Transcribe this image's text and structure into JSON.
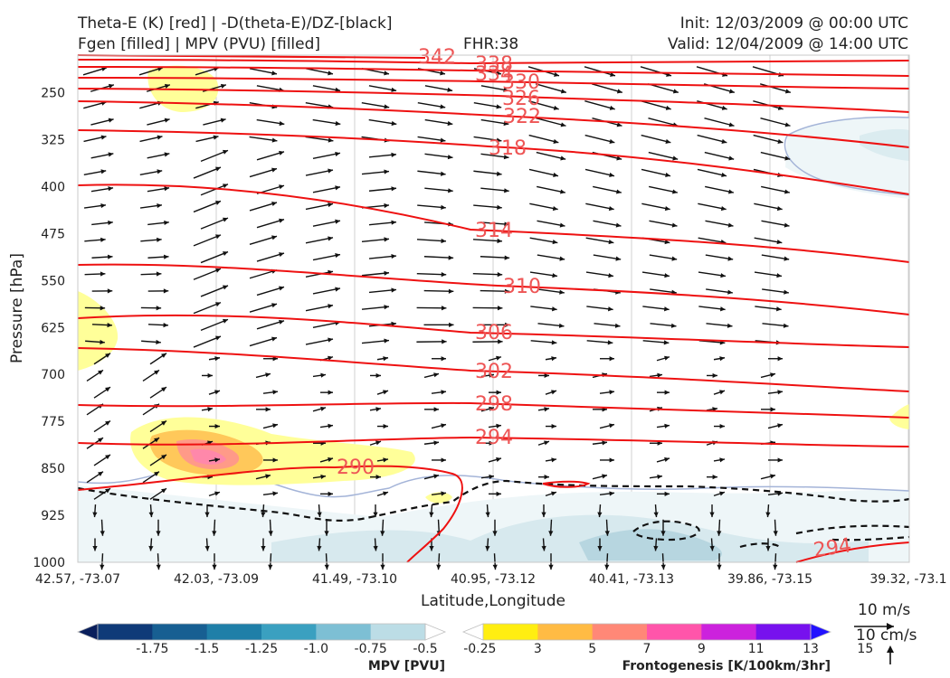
{
  "header": {
    "title_line1": "Theta-E (K) [red] | -D(theta-E)/DZ-[black]",
    "title_line2": "Fgen [filled] | MPV (PVU) [filled]",
    "fhr": "FHR:38",
    "init": "Init: 12/03/2009 @ 00:00 UTC",
    "valid": "Valid: 12/04/2009 @ 14:00 UTC"
  },
  "chart_data": {
    "type": "contour",
    "xlabel": "Latitude,Longitude",
    "ylabel": "Pressure [hPa]",
    "x_ticks": [
      "42.57, -73.07",
      "42.03, -73.09",
      "41.49, -73.10",
      "40.95, -73.12",
      "40.41, -73.13",
      "39.86, -73.15",
      "39.32, -73.1"
    ],
    "y_ticks": [
      250,
      325,
      400,
      475,
      550,
      625,
      700,
      775,
      850,
      925,
      1000
    ],
    "ylim": [
      1000,
      190
    ],
    "theta_e_contours": {
      "color": "#ee1111",
      "levels": [
        {
          "value": 342,
          "label": "342"
        },
        {
          "value": 338,
          "label": "338"
        },
        {
          "value": 334,
          "label": "334"
        },
        {
          "value": 330,
          "label": "330"
        },
        {
          "value": 326,
          "label": "326"
        },
        {
          "value": 322,
          "label": "322"
        },
        {
          "value": 318,
          "label": "318"
        },
        {
          "value": 314,
          "label": "314"
        },
        {
          "value": 310,
          "label": "310"
        },
        {
          "value": 306,
          "label": "306"
        },
        {
          "value": 302,
          "label": "302"
        },
        {
          "value": 298,
          "label": "298"
        },
        {
          "value": 294,
          "label": "294"
        },
        {
          "value": 290,
          "label": "290"
        },
        {
          "value": 294,
          "label": "294"
        }
      ]
    },
    "mpv_colorbar": {
      "title": "MPV [PVU]",
      "ticks": [
        "-1.75",
        "-1.5",
        "-1.25",
        "-1.0",
        "-0.75",
        "-0.5",
        "-0.25"
      ],
      "colors": [
        "#0a1f5c",
        "#0f3a78",
        "#175f92",
        "#1f7fa8",
        "#3aa0c0",
        "#7dbfd4",
        "#bcdde6",
        "#ffffff"
      ]
    },
    "fgen_colorbar": {
      "title": "Frontogenesis [K/100km/3hr]",
      "ticks": [
        "3",
        "5",
        "7",
        "9",
        "11",
        "13",
        "15"
      ],
      "colors": [
        "#ffffff",
        "#ffee11",
        "#ffbb44",
        "#ff8877",
        "#ff55aa",
        "#cc22dd",
        "#7711ee",
        "#2211ff"
      ]
    }
  },
  "vector_key": {
    "horizontal": "10 m/s",
    "vertical": "10 cm/s"
  }
}
